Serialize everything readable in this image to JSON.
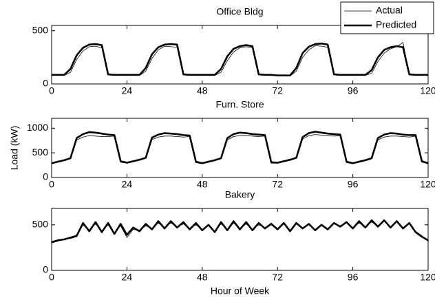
{
  "chart_data": [
    {
      "type": "line",
      "title": "Office Bldg",
      "legend": "upper right",
      "x": [
        0,
        2,
        4,
        6,
        8,
        10,
        12,
        14,
        16,
        18,
        20,
        22,
        24,
        26,
        28,
        30,
        32,
        34,
        36,
        38,
        40,
        42,
        44,
        46,
        48,
        50,
        52,
        54,
        56,
        58,
        60,
        62,
        64,
        66,
        68,
        70,
        72,
        74,
        76,
        78,
        80,
        82,
        84,
        86,
        88,
        90,
        92,
        94,
        96,
        98,
        100,
        102,
        104,
        106,
        108,
        110,
        112,
        114,
        116,
        118,
        120
      ],
      "series": [
        {
          "name": "Actual",
          "color": "#000000",
          "linewidth": 0.8,
          "values": [
            80,
            80,
            80,
            110,
            230,
            310,
            350,
            355,
            340,
            85,
            80,
            80,
            80,
            80,
            80,
            120,
            240,
            320,
            355,
            350,
            345,
            85,
            80,
            80,
            80,
            80,
            80,
            110,
            220,
            300,
            340,
            350,
            340,
            85,
            80,
            80,
            75,
            75,
            75,
            120,
            250,
            320,
            360,
            355,
            345,
            85,
            80,
            80,
            80,
            80,
            80,
            100,
            210,
            290,
            330,
            350,
            390,
            85,
            80,
            80,
            80
          ]
        },
        {
          "name": "Predicted",
          "color": "#000000",
          "linewidth": 2.6,
          "values": [
            85,
            85,
            85,
            140,
            270,
            340,
            370,
            375,
            365,
            90,
            85,
            85,
            85,
            85,
            85,
            150,
            280,
            345,
            370,
            375,
            370,
            90,
            85,
            85,
            85,
            85,
            85,
            140,
            260,
            330,
            355,
            365,
            355,
            90,
            85,
            85,
            80,
            80,
            80,
            150,
            290,
            350,
            375,
            380,
            370,
            90,
            85,
            85,
            85,
            85,
            85,
            130,
            250,
            320,
            345,
            355,
            345,
            90,
            85,
            85,
            85
          ]
        }
      ],
      "xlim": [
        0,
        120
      ],
      "xticks": [
        0,
        24,
        48,
        72,
        96,
        120
      ],
      "ylim": [
        0,
        550
      ],
      "yticks": [
        0,
        500
      ]
    },
    {
      "type": "line",
      "title": "Furn. Store",
      "ylabel": "Load (kW)",
      "x": [
        0,
        2,
        4,
        6,
        8,
        10,
        12,
        14,
        16,
        18,
        20,
        22,
        24,
        26,
        28,
        30,
        32,
        34,
        36,
        38,
        40,
        42,
        44,
        46,
        48,
        50,
        52,
        54,
        56,
        58,
        60,
        62,
        64,
        66,
        68,
        70,
        72,
        74,
        76,
        78,
        80,
        82,
        84,
        86,
        88,
        90,
        92,
        94,
        96,
        98,
        100,
        102,
        104,
        106,
        108,
        110,
        112,
        114,
        116,
        118,
        120
      ],
      "series": [
        {
          "color": "#000000",
          "linewidth": 0.8,
          "values": [
            280,
            310,
            340,
            380,
            760,
            820,
            850,
            840,
            830,
            830,
            840,
            310,
            290,
            320,
            350,
            390,
            770,
            820,
            840,
            840,
            830,
            820,
            830,
            300,
            280,
            310,
            340,
            380,
            760,
            830,
            850,
            850,
            840,
            830,
            840,
            290,
            290,
            320,
            350,
            390,
            780,
            850,
            870,
            860,
            850,
            840,
            850,
            300,
            280,
            310,
            340,
            380,
            760,
            820,
            840,
            840,
            830,
            820,
            840,
            310,
            280
          ]
        },
        {
          "color": "#000000",
          "linewidth": 2.6,
          "values": [
            290,
            320,
            350,
            390,
            800,
            880,
            920,
            910,
            890,
            870,
            860,
            330,
            300,
            330,
            360,
            400,
            810,
            870,
            900,
            890,
            880,
            860,
            850,
            320,
            290,
            320,
            350,
            390,
            800,
            880,
            910,
            900,
            880,
            870,
            860,
            310,
            300,
            330,
            360,
            400,
            820,
            900,
            930,
            910,
            890,
            880,
            870,
            320,
            290,
            320,
            350,
            390,
            800,
            870,
            900,
            890,
            870,
            860,
            860,
            330,
            290
          ]
        }
      ],
      "xlim": [
        0,
        120
      ],
      "xticks": [
        0,
        24,
        48,
        72,
        96,
        120
      ],
      "ylim": [
        0,
        1200
      ],
      "yticks": [
        0,
        500,
        1000
      ]
    },
    {
      "type": "line",
      "title": "Bakery",
      "xlabel": "Hour of Week",
      "x": [
        0,
        2,
        4,
        6,
        8,
        10,
        12,
        14,
        16,
        18,
        20,
        22,
        24,
        26,
        28,
        30,
        32,
        34,
        36,
        38,
        40,
        42,
        44,
        46,
        48,
        50,
        52,
        54,
        56,
        58,
        60,
        62,
        64,
        66,
        68,
        70,
        72,
        74,
        76,
        78,
        80,
        82,
        84,
        86,
        88,
        90,
        92,
        94,
        96,
        98,
        100,
        102,
        104,
        106,
        108,
        110,
        112,
        114,
        116,
        118,
        120
      ],
      "series": [
        {
          "color": "#000000",
          "linewidth": 0.8,
          "values": [
            300,
            320,
            345,
            350,
            370,
            500,
            440,
            510,
            430,
            500,
            410,
            490,
            360,
            450,
            440,
            490,
            460,
            520,
            470,
            520,
            480,
            510,
            460,
            500,
            450,
            490,
            430,
            510,
            450,
            520,
            460,
            510,
            450,
            500,
            470,
            520,
            460,
            510,
            440,
            510,
            470,
            500,
            450,
            490,
            460,
            510,
            490,
            520,
            470,
            520,
            480,
            530,
            490,
            540,
            480,
            530,
            470,
            510,
            430,
            380,
            320
          ]
        },
        {
          "color": "#000000",
          "linewidth": 2.6,
          "values": [
            310,
            330,
            340,
            360,
            380,
            520,
            430,
            530,
            420,
            520,
            400,
            510,
            390,
            470,
            430,
            510,
            450,
            540,
            460,
            540,
            470,
            530,
            450,
            520,
            440,
            500,
            420,
            530,
            440,
            540,
            450,
            530,
            440,
            520,
            460,
            510,
            450,
            520,
            430,
            520,
            460,
            510,
            440,
            500,
            450,
            520,
            480,
            530,
            460,
            540,
            470,
            550,
            480,
            550,
            470,
            540,
            460,
            520,
            420,
            370,
            330
          ]
        }
      ],
      "xlim": [
        0,
        120
      ],
      "xticks": [
        0,
        24,
        48,
        72,
        96,
        120
      ],
      "ylim": [
        0,
        680
      ],
      "yticks": [
        0,
        500
      ]
    }
  ]
}
